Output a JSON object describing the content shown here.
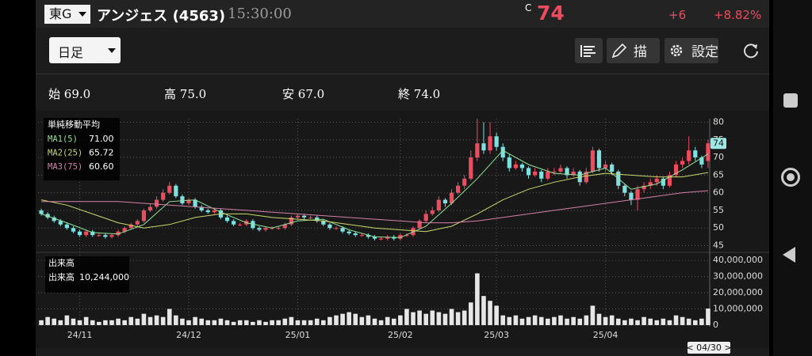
{
  "header": {
    "exchange": "東G",
    "name": "アンジェス",
    "code": "(4563)",
    "time": "15:30:00",
    "price_prefix": "C",
    "price": "74",
    "change": "+6",
    "change_pct": "+8.82%"
  },
  "toolbar": {
    "period": "日足",
    "draw": "描画",
    "settings": "設定"
  },
  "ohlc": [
    {
      "label": "始",
      "value": "69.0"
    },
    {
      "label": "高",
      "value": "75.0"
    },
    {
      "label": "安",
      "value": "67.0"
    },
    {
      "label": "終",
      "value": "74.0"
    }
  ],
  "chart_data": {
    "type": "candlestick",
    "up_color": "#ef4b5f",
    "down_color": "#7ee0e0",
    "xlim": [
      -0.5,
      104.5
    ],
    "xticks": [
      {
        "value": 6,
        "label": "24/11"
      },
      {
        "value": 23,
        "label": "24/12"
      },
      {
        "value": 40,
        "label": "25/01"
      },
      {
        "value": 56,
        "label": "25/02"
      },
      {
        "value": 71,
        "label": "25/03"
      },
      {
        "value": 88,
        "label": "25/04"
      }
    ],
    "ylim": [
      44,
      81
    ],
    "yticks": [
      45,
      50,
      55,
      60,
      65,
      70,
      75,
      80
    ],
    "grid": true,
    "open": [
      55,
      54,
      53,
      52,
      51,
      50,
      49,
      48,
      49,
      48,
      48,
      47.5,
      48,
      49,
      50,
      51,
      52,
      55,
      56,
      58,
      60,
      62,
      59,
      57,
      58,
      56,
      55,
      54.5,
      55,
      53,
      52,
      51,
      51,
      52,
      50,
      49.5,
      50,
      50,
      50,
      51,
      53,
      53.5,
      53,
      53,
      52,
      51,
      50,
      50,
      49,
      48.5,
      48,
      48,
      47.5,
      47,
      47,
      47.5,
      47,
      48,
      48,
      50,
      52,
      54,
      55,
      58,
      57,
      60,
      62,
      64,
      70,
      74,
      72,
      76,
      73,
      70,
      67,
      68,
      67,
      65,
      66,
      64,
      66,
      66,
      67,
      65,
      66,
      63,
      66,
      72,
      67,
      68,
      66,
      62,
      60,
      58,
      61,
      62,
      63,
      64,
      62,
      65,
      68,
      69,
      72,
      70,
      69
    ],
    "high": [
      55.5,
      54.5,
      53.5,
      52.5,
      51.5,
      50.5,
      49.5,
      49.5,
      49.5,
      48.5,
      48.5,
      48.5,
      49.5,
      50.5,
      51.5,
      52.5,
      55.5,
      57,
      59,
      61,
      63,
      62.5,
      59.5,
      58.5,
      58.5,
      56.5,
      55.5,
      55.5,
      55.5,
      53.5,
      52.5,
      51.5,
      52.5,
      52.5,
      50.5,
      50.5,
      50.5,
      50.5,
      51.5,
      53.5,
      54,
      54,
      53.5,
      53.5,
      52.5,
      51.5,
      50.5,
      50.5,
      49.5,
      49,
      48.5,
      48.5,
      48,
      47.5,
      48,
      48,
      48.5,
      48.5,
      50.5,
      52.5,
      55,
      56,
      59,
      58.5,
      61,
      63,
      65,
      72,
      81,
      80,
      80,
      77,
      74,
      71,
      69,
      68.5,
      67.5,
      67,
      66.5,
      67,
      67,
      68,
      67.5,
      67,
      66.5,
      67,
      73,
      72.5,
      69,
      68.5,
      66.5,
      62.5,
      60.5,
      62,
      63,
      64,
      65,
      64.5,
      66,
      69,
      70,
      76,
      73,
      70.5,
      75
    ],
    "low": [
      53.5,
      52.5,
      51.5,
      50.5,
      49.5,
      48.5,
      47.5,
      47.5,
      47.5,
      47.5,
      47,
      47,
      47.5,
      48.5,
      49.5,
      50.5,
      51.5,
      54.5,
      55.5,
      57.5,
      59.5,
      58.5,
      56.5,
      56.5,
      55.5,
      54.5,
      54,
      54,
      52.5,
      51.5,
      50.5,
      50.5,
      50.5,
      49.5,
      49,
      49,
      49.5,
      49.5,
      49.5,
      50.5,
      52.5,
      52.5,
      52.5,
      51.5,
      50.5,
      49.5,
      49.5,
      48.5,
      48,
      47.5,
      47.5,
      47,
      46.5,
      46.5,
      46.5,
      46.5,
      46.5,
      47.5,
      47.5,
      49.5,
      51.5,
      53.5,
      54.5,
      56,
      56.5,
      59.5,
      61,
      63.5,
      69,
      71,
      71,
      72,
      69,
      66,
      66.5,
      66,
      64,
      64.5,
      63,
      63.5,
      65,
      65.5,
      64,
      64.5,
      62,
      62.5,
      65.5,
      66,
      66,
      65,
      61,
      59,
      56.5,
      55,
      60,
      61,
      62,
      61,
      61.5,
      64.5,
      67,
      68,
      69,
      67,
      67
    ],
    "close": [
      54,
      53,
      52,
      51,
      50,
      49,
      48,
      49,
      48,
      48,
      47.5,
      48,
      49,
      50,
      51,
      52,
      55,
      56,
      58,
      60,
      62,
      59,
      57,
      58,
      56,
      55,
      54.5,
      55,
      53,
      52,
      51,
      51,
      52,
      50,
      49.5,
      50,
      50,
      50,
      51,
      53,
      53.5,
      53,
      53,
      52,
      51,
      50,
      50,
      49,
      48.5,
      48,
      48,
      47.5,
      47,
      47,
      47.5,
      47,
      48,
      48,
      50,
      52,
      54,
      55,
      58,
      57,
      60,
      62,
      64,
      70,
      74,
      72,
      76,
      73,
      70,
      67,
      68,
      67,
      65,
      66,
      64,
      66,
      66,
      67,
      65,
      66,
      63,
      66,
      72,
      67,
      68,
      66,
      62,
      60,
      58,
      61,
      62,
      63,
      64,
      62,
      65,
      68,
      69,
      72,
      70,
      68,
      74
    ],
    "current_price": {
      "value": 74,
      "label": "74"
    },
    "cursor_date": "< 04/30 >",
    "indicator_title": "単純移動平均",
    "series": [
      {
        "name": "MA1(5)",
        "color": "#8fe39a",
        "value_label": "71.00",
        "x": [
          0,
          4,
          8,
          12,
          16,
          20,
          24,
          28,
          32,
          36,
          40,
          44,
          48,
          52,
          56,
          60,
          64,
          68,
          72,
          76,
          80,
          84,
          88,
          92,
          96,
          100,
          104
        ],
        "values": [
          54,
          51.5,
          48.7,
          48.3,
          51,
          57.5,
          58,
          54.5,
          51.5,
          50,
          52,
          52.5,
          49.5,
          47.5,
          47.3,
          50.5,
          57,
          64,
          72,
          68,
          65.5,
          65,
          67,
          61,
          62.5,
          66.5,
          71
        ]
      },
      {
        "name": "MA2(25)",
        "color": "#cdd96e",
        "value_label": "65.72",
        "x": [
          0,
          4,
          8,
          12,
          16,
          20,
          24,
          28,
          32,
          36,
          40,
          44,
          48,
          52,
          56,
          60,
          64,
          68,
          72,
          76,
          80,
          84,
          88,
          92,
          96,
          100,
          104
        ],
        "values": [
          58,
          56.5,
          54,
          51.5,
          50,
          51,
          53,
          54,
          54,
          53,
          52.5,
          52,
          51,
          50,
          49.5,
          49,
          50.5,
          54,
          58,
          61,
          63,
          64.5,
          65.5,
          65,
          64.5,
          64.5,
          65.72
        ]
      },
      {
        "name": "MA3(75)",
        "color": "#d680a8",
        "value_label": "60.60",
        "x": [
          0,
          4,
          8,
          12,
          16,
          20,
          24,
          28,
          32,
          36,
          40,
          44,
          48,
          52,
          56,
          60,
          64,
          68,
          72,
          76,
          80,
          84,
          88,
          92,
          96,
          100,
          104
        ],
        "values": [
          57.5,
          57.5,
          57.5,
          57.5,
          57,
          56.5,
          56,
          55.5,
          55,
          54.5,
          54,
          53.5,
          53,
          52.5,
          52,
          51.5,
          51.5,
          52,
          53,
          54,
          55,
          56,
          57,
          58,
          59,
          60,
          60.6
        ]
      }
    ],
    "volume": {
      "title": "出来高",
      "name": "出来高",
      "value_label": "10,244,000",
      "color": "#e6e6e6",
      "ylim": [
        -1000000,
        43000000
      ],
      "yticks": [
        {
          "value": 0,
          "label": "0"
        },
        {
          "value": 10000000,
          "label": "10,000,000"
        },
        {
          "value": 20000000,
          "label": "20,000,000"
        },
        {
          "value": 30000000,
          "label": "30,000,000"
        },
        {
          "value": 40000000,
          "label": "40,000,000"
        }
      ],
      "values": [
        3000000,
        5000000,
        4000000,
        3000000,
        6000000,
        4000000,
        3000000,
        5000000,
        3000000,
        2000000,
        3000000,
        3000000,
        4000000,
        3000000,
        5000000,
        4000000,
        7000000,
        5000000,
        6000000,
        5000000,
        10000000,
        6000000,
        4000000,
        3000000,
        5000000,
        4000000,
        3000000,
        3000000,
        4000000,
        3000000,
        2000000,
        3000000,
        3000000,
        2000000,
        3000000,
        2000000,
        3000000,
        3000000,
        4000000,
        5000000,
        3000000,
        3000000,
        3000000,
        4000000,
        3000000,
        5000000,
        6000000,
        7000000,
        8000000,
        7000000,
        5000000,
        6000000,
        4000000,
        3000000,
        5000000,
        4000000,
        6000000,
        10000000,
        8000000,
        9000000,
        7000000,
        9000000,
        8000000,
        7000000,
        10000000,
        8000000,
        9000000,
        14000000,
        32000000,
        18000000,
        15000000,
        12000000,
        6000000,
        5000000,
        6000000,
        4000000,
        5000000,
        6000000,
        5000000,
        4000000,
        5000000,
        6000000,
        4000000,
        5000000,
        4000000,
        6000000,
        12000000,
        7000000,
        5000000,
        6000000,
        4000000,
        3000000,
        4000000,
        3000000,
        5000000,
        4000000,
        3000000,
        4000000,
        3000000,
        6000000,
        5000000,
        4000000,
        3000000,
        4000000,
        10244000
      ]
    }
  }
}
